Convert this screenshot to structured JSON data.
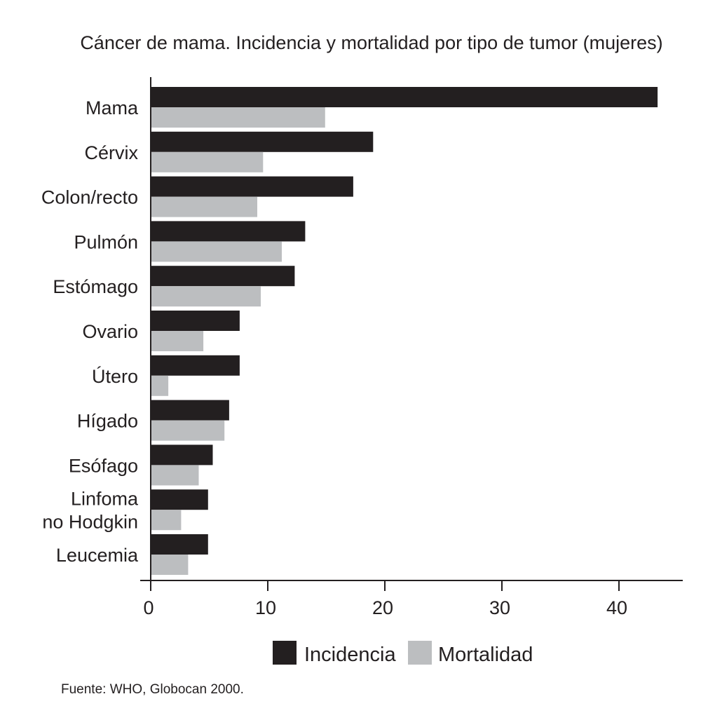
{
  "chart_data": {
    "type": "bar",
    "orientation": "horizontal",
    "title": "Cáncer de mama. Incidencia y mortalidad por tipo de tumor (mujeres)",
    "categories": [
      [
        "Mama"
      ],
      [
        "Cérvix"
      ],
      [
        "Colon/recto"
      ],
      [
        "Pulmón"
      ],
      [
        "Estómago"
      ],
      [
        "Ovario"
      ],
      [
        "Útero"
      ],
      [
        "Hígado"
      ],
      [
        "Esófago"
      ],
      [
        "Linfoma",
        "no Hodgkin"
      ],
      [
        "Leucemia"
      ]
    ],
    "series": [
      {
        "name": "Incidencia",
        "color": "#231f20",
        "values": [
          43.3,
          19.0,
          17.3,
          13.2,
          12.3,
          7.6,
          7.6,
          6.7,
          5.3,
          4.9,
          4.9
        ]
      },
      {
        "name": "Mortalidad",
        "color": "#bcbec0",
        "values": [
          14.9,
          9.6,
          9.1,
          11.2,
          9.4,
          4.5,
          1.5,
          6.3,
          4.1,
          2.6,
          3.2
        ]
      }
    ],
    "xticks": [
      0,
      10,
      20,
      30,
      40
    ],
    "xlim": [
      0,
      45.5
    ],
    "xlabel": "",
    "ylabel": "",
    "grid": false,
    "legend": "bottom"
  },
  "source": "Fuente: WHO, Globocan 2000."
}
